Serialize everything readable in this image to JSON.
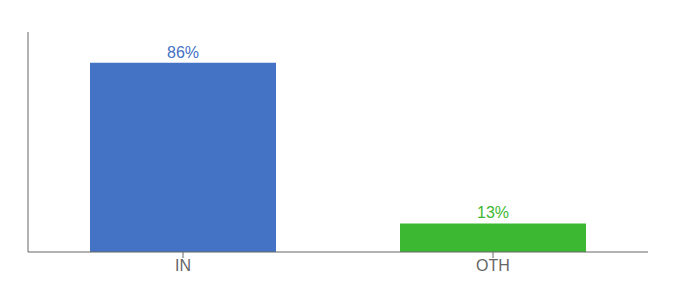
{
  "chart_data": {
    "type": "bar",
    "categories": [
      "IN",
      "OTH"
    ],
    "values": [
      86,
      13
    ],
    "value_labels": [
      "86%",
      "13%"
    ],
    "colors": [
      "#4472c4",
      "#3db832"
    ],
    "ylim": [
      0,
      100
    ],
    "data_labels": true,
    "tick_labels": "x"
  }
}
